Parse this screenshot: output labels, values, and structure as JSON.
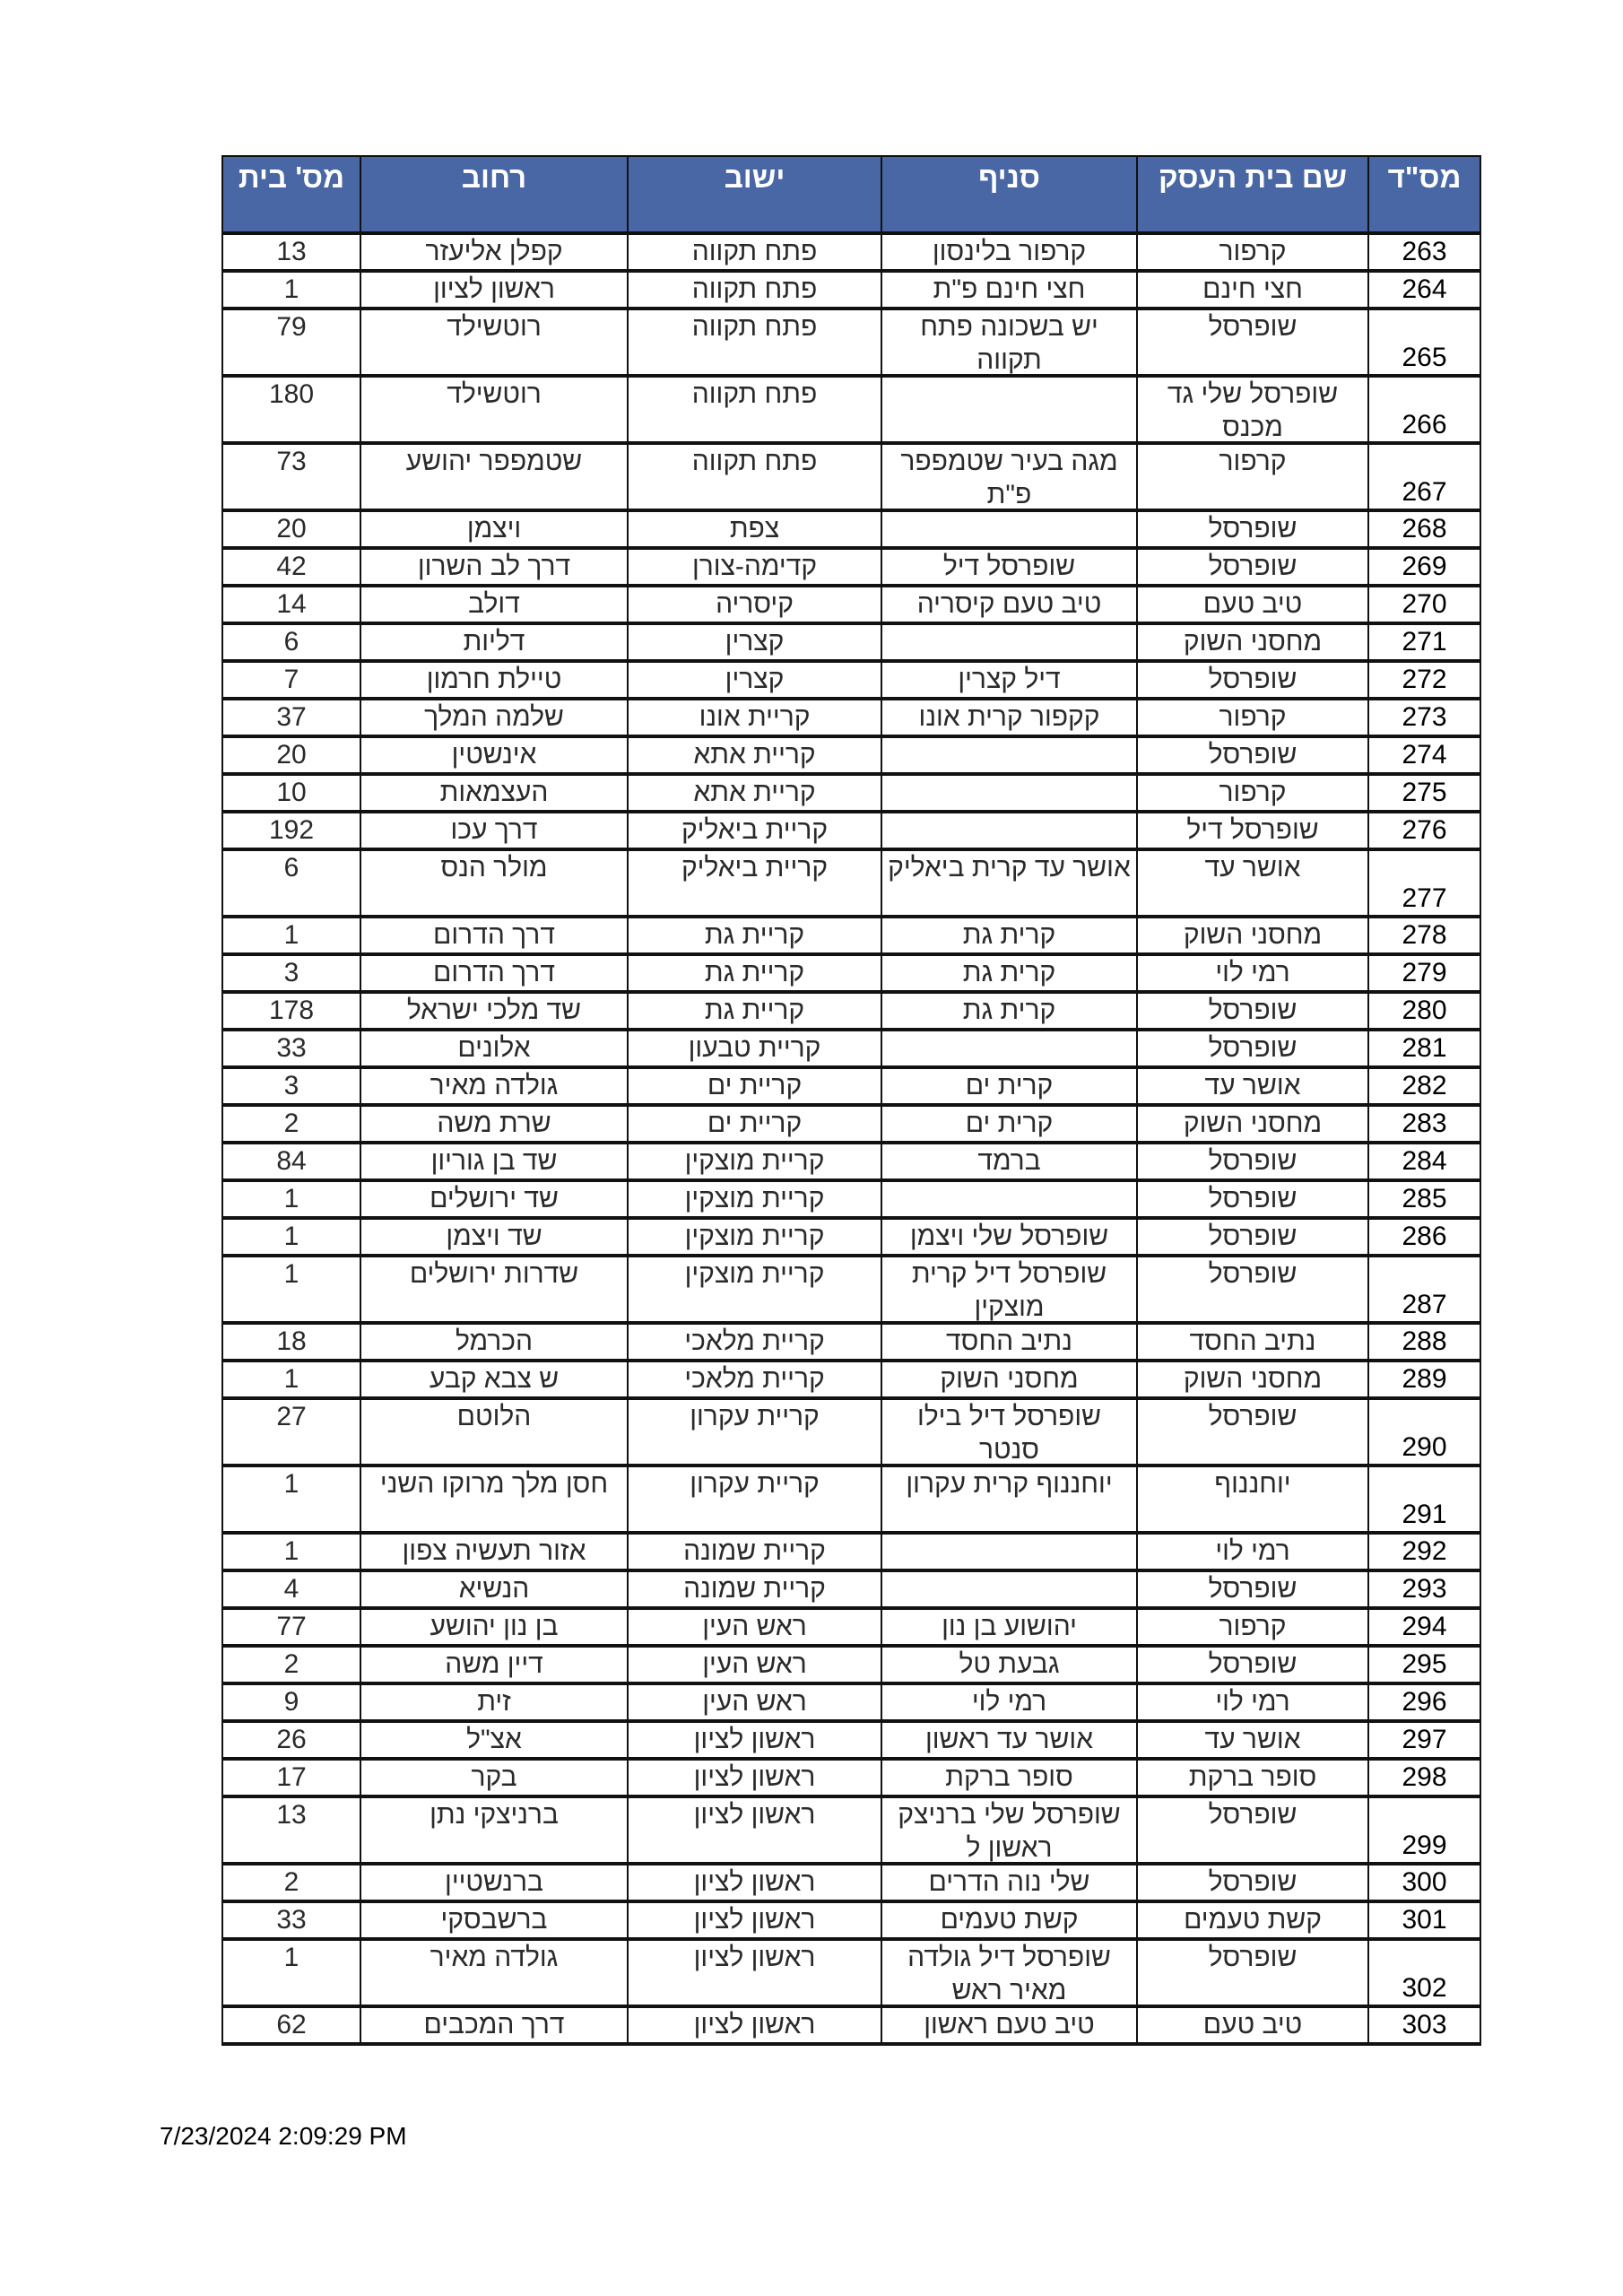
{
  "header": {
    "columns": [
      "מס\"ד",
      "שם בית העסק",
      "סניף",
      "ישוב",
      "רחוב",
      "מס' בית"
    ],
    "background_color": "#4a67a5"
  },
  "rows": [
    {
      "id": "263",
      "business": "קרפור",
      "branch": "קרפור בלינסון",
      "city": "פתח תקווה",
      "street": "קפלן אליעזר",
      "number": "13"
    },
    {
      "id": "264",
      "business": "חצי חינם",
      "branch": "חצי חינם פ\"ת",
      "city": "פתח תקווה",
      "street": "ראשון לציון",
      "number": "1"
    },
    {
      "id": "265",
      "business": "שופרסל",
      "branch": "יש בשכונה פתח תקווה",
      "city": "פתח תקווה",
      "street": "רוטשילד",
      "number": "79",
      "tall": true
    },
    {
      "id": "266",
      "business": "שופרסל שלי גד מכנס",
      "branch": "",
      "city": "פתח תקווה",
      "street": "רוטשילד",
      "number": "180",
      "tall": true
    },
    {
      "id": "267",
      "business": "קרפור",
      "branch": "מגה בעיר שטמפפר פ\"ת",
      "city": "פתח תקווה",
      "street": "שטמפפר יהושע",
      "number": "73",
      "tall": true
    },
    {
      "id": "268",
      "business": "שופרסל",
      "branch": "",
      "city": "צפת",
      "street": "ויצמן",
      "number": "20"
    },
    {
      "id": "269",
      "business": "שופרסל",
      "branch": "שופרסל דיל",
      "city": "קדימה-צורן",
      "street": "דרך לב השרון",
      "number": "42"
    },
    {
      "id": "270",
      "business": "טיב טעם",
      "branch": "טיב טעם קיסריה",
      "city": "קיסריה",
      "street": "דולב",
      "number": "14"
    },
    {
      "id": "271",
      "business": "מחסני השוק",
      "branch": "",
      "city": "קצרין",
      "street": "דליות",
      "number": "6"
    },
    {
      "id": "272",
      "business": "שופרסל",
      "branch": "דיל קצרין",
      "city": "קצרין",
      "street": "טיילת חרמון",
      "number": "7"
    },
    {
      "id": "273",
      "business": "קרפור",
      "branch": "קקפור קרית אונו",
      "city": "קריית אונו",
      "street": "שלמה המלך",
      "number": "37"
    },
    {
      "id": "274",
      "business": "שופרסל",
      "branch": "",
      "city": "קריית אתא",
      "street": "אינשטין",
      "number": "20"
    },
    {
      "id": "275",
      "business": "קרפור",
      "branch": "",
      "city": "קריית אתא",
      "street": "העצמאות",
      "number": "10"
    },
    {
      "id": "276",
      "business": "שופרסל דיל",
      "branch": "",
      "city": "קריית ביאליק",
      "street": "דרך עכו",
      "number": "192"
    },
    {
      "id": "277",
      "business": "אושר עד",
      "branch": "אושר עד קרית ביאליק",
      "city": "קריית ביאליק",
      "street": "מולר הנס",
      "number": "6",
      "tall": true
    },
    {
      "id": "278",
      "business": "מחסני השוק",
      "branch": "קרית גת",
      "city": "קריית גת",
      "street": "דרך הדרום",
      "number": "1"
    },
    {
      "id": "279",
      "business": "רמי לוי",
      "branch": "קרית גת",
      "city": "קריית גת",
      "street": "דרך הדרום",
      "number": "3"
    },
    {
      "id": "280",
      "business": "שופרסל",
      "branch": "קרית גת",
      "city": "קריית גת",
      "street": "שד מלכי ישראל",
      "number": "178"
    },
    {
      "id": "281",
      "business": "שופרסל",
      "branch": "",
      "city": "קריית טבעון",
      "street": "אלונים",
      "number": "33"
    },
    {
      "id": "282",
      "business": "אושר עד",
      "branch": "קרית ים",
      "city": "קריית ים",
      "street": "גולדה מאיר",
      "number": "3"
    },
    {
      "id": "283",
      "business": "מחסני השוק",
      "branch": "קרית ים",
      "city": "קריית ים",
      "street": "שרת משה",
      "number": "2"
    },
    {
      "id": "284",
      "business": "שופרסל",
      "branch": "ברמד",
      "city": "קריית מוצקין",
      "street": "שד בן גוריון",
      "number": "84"
    },
    {
      "id": "285",
      "business": "שופרסל",
      "branch": "",
      "city": "קריית מוצקין",
      "street": "שד ירושלים",
      "number": "1"
    },
    {
      "id": "286",
      "business": "שופרסל",
      "branch": "שופרסל שלי ויצמן",
      "city": "קריית מוצקין",
      "street": "שד ויצמן",
      "number": "1"
    },
    {
      "id": "287",
      "business": "שופרסל",
      "branch": "שופרסל דיל קרית מוצקין",
      "city": "קריית מוצקין",
      "street": "שדרות ירושלים",
      "number": "1",
      "tall": true
    },
    {
      "id": "288",
      "business": "נתיב החסד",
      "branch": "נתיב החסד",
      "city": "קריית מלאכי",
      "street": "הכרמל",
      "number": "18"
    },
    {
      "id": "289",
      "business": "מחסני השוק",
      "branch": "מחסני השוק",
      "city": "קריית מלאכי",
      "street": "ש צבא קבע",
      "number": "1"
    },
    {
      "id": "290",
      "business": "שופרסל",
      "branch": "שופרסל דיל בילו סנטר",
      "city": "קריית עקרון",
      "street": "הלוטם",
      "number": "27",
      "tall": true
    },
    {
      "id": "291",
      "business": "יוחננוף",
      "branch": "יוחננוף קרית עקרון",
      "city": "קריית עקרון",
      "street": "חסן מלך מרוקו השני",
      "number": "1",
      "tall": true
    },
    {
      "id": "292",
      "business": "רמי לוי",
      "branch": "",
      "city": "קריית שמונה",
      "street": "אזור תעשיה צפון",
      "number": "1"
    },
    {
      "id": "293",
      "business": "שופרסל",
      "branch": "",
      "city": "קריית שמונה",
      "street": "הנשיא",
      "number": "4"
    },
    {
      "id": "294",
      "business": "קרפור",
      "branch": "יהושוע בן נון",
      "city": "ראש העין",
      "street": "בן נון יהושע",
      "number": "77"
    },
    {
      "id": "295",
      "business": "שופרסל",
      "branch": "גבעת טל",
      "city": "ראש העין",
      "street": "דיין משה",
      "number": "2"
    },
    {
      "id": "296",
      "business": "רמי לוי",
      "branch": "רמי לוי",
      "city": "ראש העין",
      "street": "זית",
      "number": "9"
    },
    {
      "id": "297",
      "business": "אושר עד",
      "branch": "אושר עד ראשון",
      "city": "ראשון לציון",
      "street": "אצ\"ל",
      "number": "26"
    },
    {
      "id": "298",
      "business": "סופר ברקת",
      "branch": "סופר ברקת",
      "city": "ראשון לציון",
      "street": "בקר",
      "number": "17"
    },
    {
      "id": "299",
      "business": "שופרסל",
      "branch": "שופרסל שלי ברניצק ראשון ל",
      "city": "ראשון לציון",
      "street": "ברניצקי נתן",
      "number": "13",
      "tall": true
    },
    {
      "id": "300",
      "business": "שופרסל",
      "branch": "שלי נוה הדרים",
      "city": "ראשון לציון",
      "street": "ברנשטיין",
      "number": "2"
    },
    {
      "id": "301",
      "business": "קשת טעמים",
      "branch": "קשת טעמים",
      "city": "ראשון לציון",
      "street": "ברשבסקי",
      "number": "33"
    },
    {
      "id": "302",
      "business": "שופרסל",
      "branch": "שופרסל דיל גולדה מאיר ראש",
      "city": "ראשון לציון",
      "street": "גולדה מאיר",
      "number": "1",
      "tall": true
    },
    {
      "id": "303",
      "business": "טיב טעם",
      "branch": "טיב טעם ראשון",
      "city": "ראשון לציון",
      "street": "דרך המכבים",
      "number": "62"
    }
  ],
  "footer": {
    "timestamp": "7/23/2024 2:09:29 PM"
  }
}
